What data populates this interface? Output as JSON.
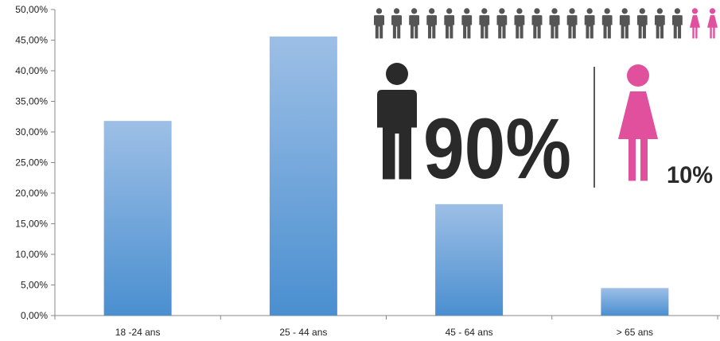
{
  "chart_data": {
    "type": "bar",
    "categories": [
      "18 -24 ans",
      "25 - 44 ans",
      "45 - 64 ans",
      "> 65 ans"
    ],
    "values": [
      31.8,
      45.6,
      18.2,
      4.5
    ],
    "ylim": [
      0,
      50
    ],
    "y_ticks": [
      "0,00%",
      "5,00%",
      "10,00%",
      "15,00%",
      "20,00%",
      "25,00%",
      "30,00%",
      "35,00%",
      "40,00%",
      "45,00%",
      "50,00%"
    ],
    "grid": false,
    "bar_color_top": "#9dbfe6",
    "bar_color_bottom": "#4a8fd0"
  },
  "gender_infographic": {
    "male_label": "90%",
    "female_label": "10%",
    "male_share": 0.9,
    "female_share": 0.1,
    "icon_row": {
      "male_count": 18,
      "female_count": 2
    },
    "male_color": "#2a2a2a",
    "male_small_color": "#555555",
    "female_color": "#e0509d",
    "male_icon": "man-icon",
    "female_icon": "woman-icon"
  }
}
